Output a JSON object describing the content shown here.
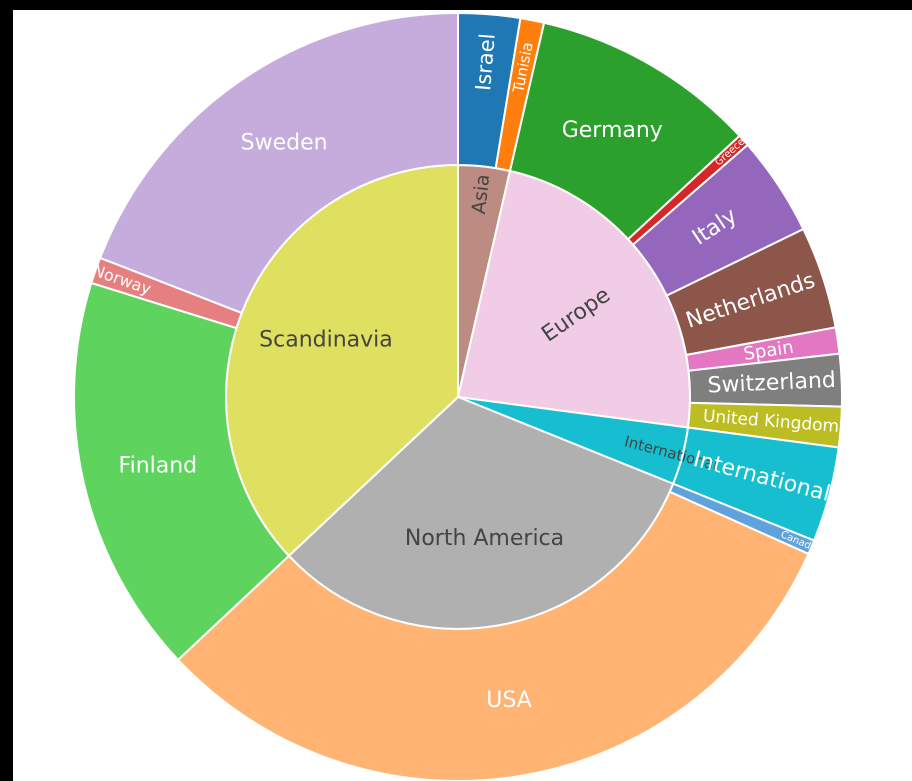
{
  "chart_data": {
    "type": "sunburst",
    "order": "clockwise from top",
    "inner_ring": [
      {
        "label": "Asia",
        "value": 3.6,
        "color": "#bc8b81",
        "text_color": "#444444"
      },
      {
        "label": "Europe",
        "value": 23.5,
        "color": "#f1cce6",
        "text_color": "#444444"
      },
      {
        "label": "International",
        "value": 4.0,
        "color": "#17becf",
        "text_color": "#444444"
      },
      {
        "label": "North America",
        "value": 31.9,
        "color": "#b0b0b0",
        "text_color": "#444444"
      },
      {
        "label": "Scandinavia",
        "value": 37.0,
        "color": "#dfe060",
        "text_color": "#444444"
      }
    ],
    "outer_ring": [
      {
        "label": "Israel",
        "parent": "Asia",
        "value": 2.6,
        "color": "#1f77b4",
        "text_color": "#ffffff"
      },
      {
        "label": "Tunisia",
        "parent": "Asia",
        "value": 1.0,
        "color": "#ff7f0e",
        "text_color": "#ffffff"
      },
      {
        "label": "Germany",
        "parent": "Europe",
        "value": 9.5,
        "color": "#2ca02c",
        "text_color": "#ffffff"
      },
      {
        "label": "Greece",
        "parent": "Europe",
        "value": 0.5,
        "color": "#d62728",
        "text_color": "#ffffff"
      },
      {
        "label": "Italy",
        "parent": "Europe",
        "value": 4.2,
        "color": "#9467bd",
        "text_color": "#ffffff"
      },
      {
        "label": "Netherlands",
        "parent": "Europe",
        "value": 4.3,
        "color": "#8c564b",
        "text_color": "#ffffff"
      },
      {
        "label": "Spain",
        "parent": "Europe",
        "value": 1.1,
        "color": "#e377c2",
        "text_color": "#ffffff"
      },
      {
        "label": "Switzerland",
        "parent": "Europe",
        "value": 2.2,
        "color": "#7f7f7f",
        "text_color": "#ffffff"
      },
      {
        "label": "United Kingdom",
        "parent": "Europe",
        "value": 1.7,
        "color": "#bcbd22",
        "text_color": "#ffffff"
      },
      {
        "label": "International",
        "parent": "International",
        "value": 4.0,
        "color": "#17becf",
        "text_color": "#ffffff"
      },
      {
        "label": "Canada",
        "parent": "North America",
        "value": 0.6,
        "color": "#5fa2dc",
        "text_color": "#ffffff"
      },
      {
        "label": "USA",
        "parent": "North America",
        "value": 31.3,
        "color": "#ffb473",
        "text_color": "#ffffff"
      },
      {
        "label": "Finland",
        "parent": "Scandinavia",
        "value": 16.8,
        "color": "#5ed45e",
        "text_color": "#ffffff"
      },
      {
        "label": "Norway",
        "parent": "Scandinavia",
        "value": 1.1,
        "color": "#e67f7f",
        "text_color": "#ffffff"
      },
      {
        "label": "Sweden",
        "parent": "Scandinavia",
        "value": 19.1,
        "color": "#c5acdc",
        "text_color": "#ffffff"
      }
    ]
  }
}
